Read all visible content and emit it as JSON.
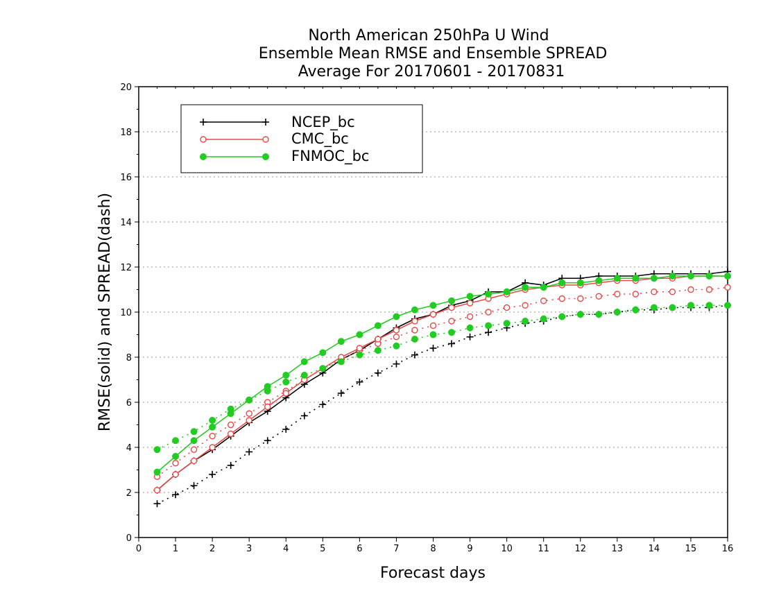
{
  "chart_data": {
    "type": "line",
    "title": [
      "North American 250hPa U Wind",
      "Ensemble Mean RMSE and Ensemble SPREAD",
      "Average For 20170601 - 20170831"
    ],
    "xlabel": "Forecast days",
    "ylabel": "RMSE(solid) and SPREAD(dash)",
    "xlim": [
      0,
      16
    ],
    "ylim": [
      0,
      20
    ],
    "xticks": [
      "0",
      "1",
      "2",
      "3",
      "4",
      "5",
      "6",
      "7",
      "8",
      "9",
      "10",
      "11",
      "12",
      "13",
      "14",
      "15",
      "16"
    ],
    "yticks": [
      "0",
      "2",
      "4",
      "6",
      "8",
      "10",
      "12",
      "14",
      "16",
      "18",
      "20"
    ],
    "grid": "horizontal dotted",
    "legend_placement": "top-left",
    "x": [
      0.5,
      1,
      1.5,
      2,
      2.5,
      3,
      3.5,
      4,
      4.5,
      5,
      5.5,
      6,
      6.5,
      7,
      7.5,
      8,
      8.5,
      9,
      9.5,
      10,
      10.5,
      11,
      11.5,
      12,
      12.5,
      13,
      13.5,
      14,
      14.5,
      15,
      15.5,
      16
    ],
    "series": [
      {
        "name": "NCEP_bc",
        "color": "#000000",
        "marker": "plus",
        "rmse": [
          2.1,
          2.8,
          3.4,
          3.9,
          4.5,
          5.1,
          5.6,
          6.2,
          6.8,
          7.3,
          7.9,
          8.3,
          8.8,
          9.3,
          9.7,
          9.9,
          10.3,
          10.5,
          10.9,
          10.9,
          11.3,
          11.2,
          11.5,
          11.5,
          11.6,
          11.6,
          11.6,
          11.7,
          11.7,
          11.7,
          11.7,
          11.8
        ],
        "spread": [
          1.5,
          1.9,
          2.3,
          2.8,
          3.2,
          3.8,
          4.3,
          4.8,
          5.4,
          5.9,
          6.4,
          6.9,
          7.3,
          7.7,
          8.1,
          8.4,
          8.6,
          8.9,
          9.1,
          9.3,
          9.5,
          9.6,
          9.8,
          9.9,
          9.9,
          10.0,
          10.1,
          10.1,
          10.2,
          10.2,
          10.2,
          10.3
        ]
      },
      {
        "name": "CMC_bc",
        "color": "#e84a4a",
        "marker": "open-circle",
        "rmse": [
          2.1,
          2.8,
          3.4,
          4.0,
          4.6,
          5.2,
          5.8,
          6.4,
          7.0,
          7.5,
          8.0,
          8.4,
          8.8,
          9.2,
          9.6,
          9.9,
          10.2,
          10.4,
          10.6,
          10.8,
          11.0,
          11.1,
          11.2,
          11.2,
          11.3,
          11.4,
          11.4,
          11.5,
          11.5,
          11.6,
          11.6,
          11.6
        ],
        "spread": [
          2.7,
          3.3,
          3.9,
          4.5,
          5.0,
          5.5,
          6.0,
          6.5,
          7.0,
          7.5,
          7.9,
          8.3,
          8.6,
          8.9,
          9.2,
          9.4,
          9.6,
          9.8,
          10.0,
          10.2,
          10.3,
          10.5,
          10.6,
          10.6,
          10.7,
          10.8,
          10.8,
          10.9,
          10.9,
          11.0,
          11.0,
          11.1
        ]
      },
      {
        "name": "FNMOC_bc",
        "color": "#22cc22",
        "marker": "filled-circle",
        "rmse": [
          2.9,
          3.6,
          4.3,
          4.9,
          5.5,
          6.1,
          6.7,
          7.2,
          7.8,
          8.2,
          8.7,
          9.0,
          9.4,
          9.8,
          10.1,
          10.3,
          10.5,
          10.7,
          10.8,
          10.9,
          11.1,
          11.1,
          11.3,
          11.3,
          11.4,
          11.5,
          11.5,
          11.5,
          11.6,
          11.6,
          11.6,
          11.6
        ],
        "spread": [
          3.9,
          4.3,
          4.7,
          5.2,
          5.7,
          6.1,
          6.5,
          6.9,
          7.2,
          7.5,
          7.8,
          8.1,
          8.3,
          8.5,
          8.8,
          9.0,
          9.1,
          9.3,
          9.4,
          9.5,
          9.6,
          9.7,
          9.8,
          9.9,
          9.9,
          10.0,
          10.1,
          10.2,
          10.2,
          10.3,
          10.3,
          10.3
        ]
      }
    ]
  }
}
